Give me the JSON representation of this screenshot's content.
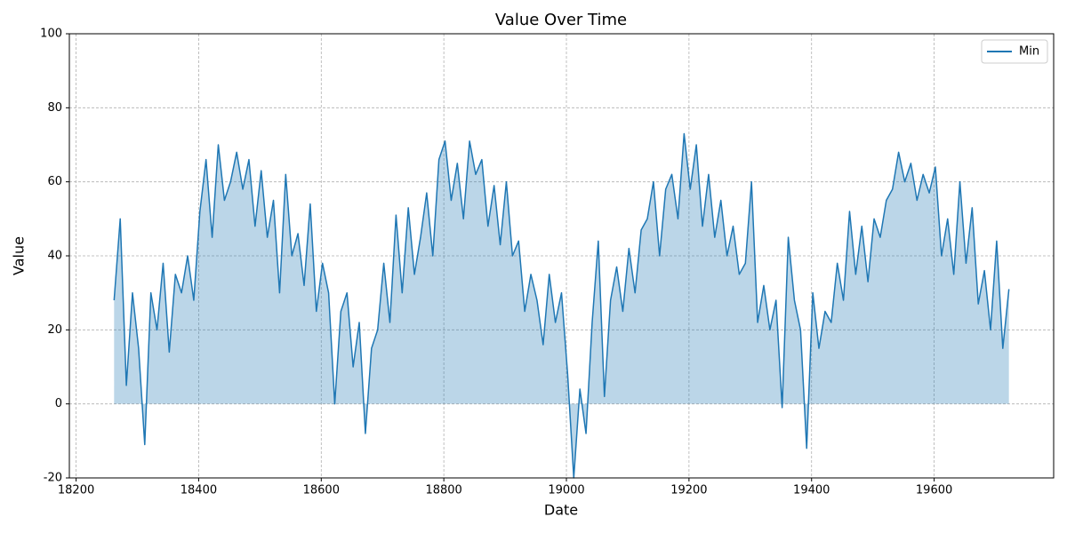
{
  "chart_data": {
    "type": "line",
    "title": "Value Over Time",
    "x_label": "Date",
    "y_label": "Value",
    "x": [
      18262,
      18272,
      18282,
      18292,
      18302,
      18312,
      18322,
      18332,
      18342,
      18352,
      18362,
      18372,
      18382,
      18392,
      18402,
      18412,
      18422,
      18432,
      18442,
      18452,
      18462,
      18472,
      18482,
      18492,
      18502,
      18512,
      18522,
      18532,
      18542,
      18552,
      18562,
      18572,
      18582,
      18592,
      18602,
      18612,
      18622,
      18632,
      18642,
      18652,
      18662,
      18672,
      18682,
      18692,
      18702,
      18712,
      18722,
      18732,
      18742,
      18752,
      18762,
      18772,
      18782,
      18792,
      18802,
      18812,
      18822,
      18832,
      18842,
      18852,
      18862,
      18872,
      18882,
      18892,
      18902,
      18912,
      18922,
      18932,
      18942,
      18952,
      18962,
      18972,
      18982,
      18992,
      19002,
      19012,
      19022,
      19032,
      19042,
      19052,
      19062,
      19072,
      19082,
      19092,
      19102,
      19112,
      19122,
      19132,
      19142,
      19152,
      19162,
      19172,
      19182,
      19192,
      19202,
      19212,
      19222,
      19232,
      19242,
      19252,
      19262,
      19272,
      19282,
      19292,
      19302,
      19312,
      19322,
      19332,
      19342,
      19352,
      19362,
      19372,
      19382,
      19392,
      19402,
      19412,
      19422,
      19432,
      19442,
      19452,
      19462,
      19472,
      19482,
      19492,
      19502,
      19512,
      19522,
      19532,
      19542,
      19552,
      19562,
      19572,
      19582,
      19592,
      19602,
      19612,
      19622,
      19632,
      19642,
      19652,
      19662,
      19672,
      19682,
      19692,
      19702,
      19712,
      19722
    ],
    "series": [
      {
        "name": "Min",
        "color": "#1f77b4",
        "fill": true,
        "values": [
          28,
          50,
          5,
          30,
          15,
          -11,
          30,
          20,
          38,
          14,
          35,
          30,
          40,
          28,
          52,
          66,
          45,
          70,
          55,
          60,
          68,
          58,
          66,
          48,
          63,
          45,
          55,
          30,
          62,
          40,
          46,
          32,
          54,
          25,
          38,
          30,
          0,
          25,
          30,
          10,
          22,
          -8,
          15,
          20,
          38,
          22,
          51,
          30,
          53,
          35,
          45,
          57,
          40,
          66,
          71,
          55,
          65,
          50,
          71,
          62,
          66,
          48,
          59,
          43,
          60,
          40,
          44,
          25,
          35,
          28,
          16,
          35,
          22,
          30,
          8,
          -20,
          4,
          -8,
          22,
          44,
          2,
          28,
          37,
          25,
          42,
          30,
          47,
          50,
          60,
          40,
          58,
          62,
          50,
          73,
          58,
          70,
          48,
          62,
          45,
          55,
          40,
          48,
          35,
          38,
          60,
          22,
          32,
          20,
          28,
          -1,
          45,
          28,
          20,
          -12,
          30,
          15,
          25,
          22,
          38,
          28,
          52,
          35,
          48,
          33,
          50,
          45,
          55,
          58,
          68,
          60,
          65,
          55,
          62,
          57,
          64,
          40,
          50,
          35,
          60,
          38,
          53,
          27,
          36,
          20,
          44,
          15,
          31
        ]
      }
    ],
    "xlim": [
      18189,
      19795
    ],
    "xticks": [
      18200,
      18400,
      18600,
      18800,
      19000,
      19200,
      19400,
      19600
    ],
    "ylim": [
      -20,
      100
    ],
    "yticks": [
      -20,
      0,
      20,
      40,
      60,
      80,
      100
    ],
    "grid": true,
    "legend": "upper right"
  }
}
